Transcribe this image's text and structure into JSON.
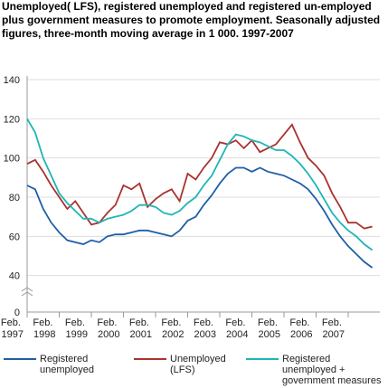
{
  "chart_data": {
    "type": "line",
    "title": "Unemployed( LFS), registered unemployed and registered un-employed plus government measures to promote employment. Seasonally adjusted figures, three-month moving average in 1 000. 1997-2007",
    "categories": [
      "Feb. 1997",
      null,
      null,
      null,
      "Feb. 1998",
      null,
      null,
      null,
      "Feb. 1999",
      null,
      null,
      null,
      "Feb. 2000",
      null,
      null,
      null,
      "Feb. 2001",
      null,
      null,
      null,
      "Feb. 2002",
      null,
      null,
      null,
      "Feb. 2003",
      null,
      null,
      null,
      "Feb. 2004",
      null,
      null,
      null,
      "Feb. 2005",
      null,
      null,
      null,
      "Feb. 2006",
      null,
      null,
      null,
      "Feb. 2007",
      null,
      null,
      null
    ],
    "series": [
      {
        "name": "Registered unemployed",
        "color": "#1f5fa8",
        "values": [
          86,
          84,
          74,
          67,
          62,
          58,
          57,
          56,
          58,
          57,
          60,
          61,
          61,
          62,
          63,
          63,
          62,
          61,
          60,
          63,
          68,
          70,
          76,
          81,
          87,
          92,
          95,
          95,
          93,
          95,
          93,
          92,
          91,
          89,
          87,
          84,
          79,
          73,
          66,
          60,
          55,
          51,
          47,
          44
        ]
      },
      {
        "name": "Unemployed (LFS)",
        "color": "#a8332f",
        "values": [
          97,
          99,
          93,
          86,
          80,
          74,
          78,
          72,
          66,
          67,
          72,
          76,
          86,
          84,
          87,
          75,
          79,
          82,
          84,
          78,
          92,
          89,
          95,
          100,
          108,
          107,
          109,
          105,
          109,
          103,
          105,
          107,
          112,
          117,
          108,
          100,
          96,
          91,
          82,
          75,
          67,
          67,
          64,
          65
        ]
      },
      {
        "name": "Registered unemployed + government measures",
        "color": "#1fb5b5",
        "values": [
          120,
          113,
          100,
          91,
          82,
          77,
          73,
          69,
          69,
          67,
          69,
          70,
          71,
          73,
          76,
          76,
          75,
          72,
          71,
          73,
          77,
          80,
          86,
          91,
          99,
          107,
          112,
          111,
          109,
          108,
          106,
          104,
          104,
          101,
          97,
          92,
          86,
          79,
          72,
          67,
          63,
          60,
          56,
          53
        ]
      }
    ],
    "ylim": [
      20,
      140
    ],
    "yticks": [
      0,
      40,
      60,
      80,
      100,
      120,
      140
    ],
    "axis_break": true,
    "grid": true
  }
}
